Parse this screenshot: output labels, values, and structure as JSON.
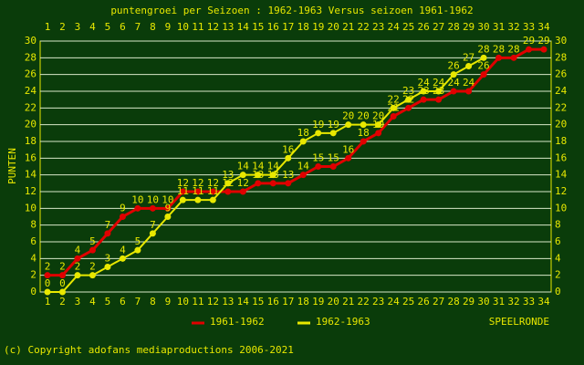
{
  "chart_data": {
    "type": "line",
    "title": "puntengroei per Seizoen : 1962-1963 Versus seizoen 1961-1962",
    "y_label": "PUNTEN",
    "x_label": "SPEELRONDE",
    "footer": "(c) Copyright adofans mediaproductions 2006-2021",
    "x": [
      1,
      2,
      3,
      4,
      5,
      6,
      7,
      8,
      9,
      10,
      11,
      12,
      13,
      14,
      15,
      16,
      17,
      18,
      19,
      20,
      21,
      22,
      23,
      24,
      25,
      26,
      27,
      28,
      29,
      30,
      31,
      32,
      33,
      34
    ],
    "xlim": [
      1,
      34
    ],
    "ylim": [
      0,
      30
    ],
    "yticks": [
      0,
      2,
      4,
      6,
      8,
      10,
      12,
      14,
      16,
      18,
      20,
      22,
      24,
      26,
      28,
      30
    ],
    "grid": true,
    "series": [
      {
        "name": "1961-1962",
        "color": "#e00000",
        "values": [
          2,
          2,
          4,
          5,
          7,
          9,
          10,
          10,
          10,
          12,
          12,
          12,
          12,
          12,
          13,
          13,
          13,
          14,
          15,
          15,
          16,
          18,
          19,
          21,
          22,
          23,
          23,
          24,
          24,
          26,
          28,
          28,
          29,
          29
        ]
      },
      {
        "name": "1962-1963",
        "color": "#e8e800",
        "values": [
          0,
          0,
          2,
          2,
          3,
          4,
          5,
          7,
          9,
          11,
          11,
          11,
          13,
          14,
          14,
          14,
          16,
          18,
          19,
          19,
          20,
          20,
          20,
          22,
          23,
          24,
          24,
          26,
          27,
          28,
          null,
          null,
          null,
          null
        ]
      }
    ]
  }
}
